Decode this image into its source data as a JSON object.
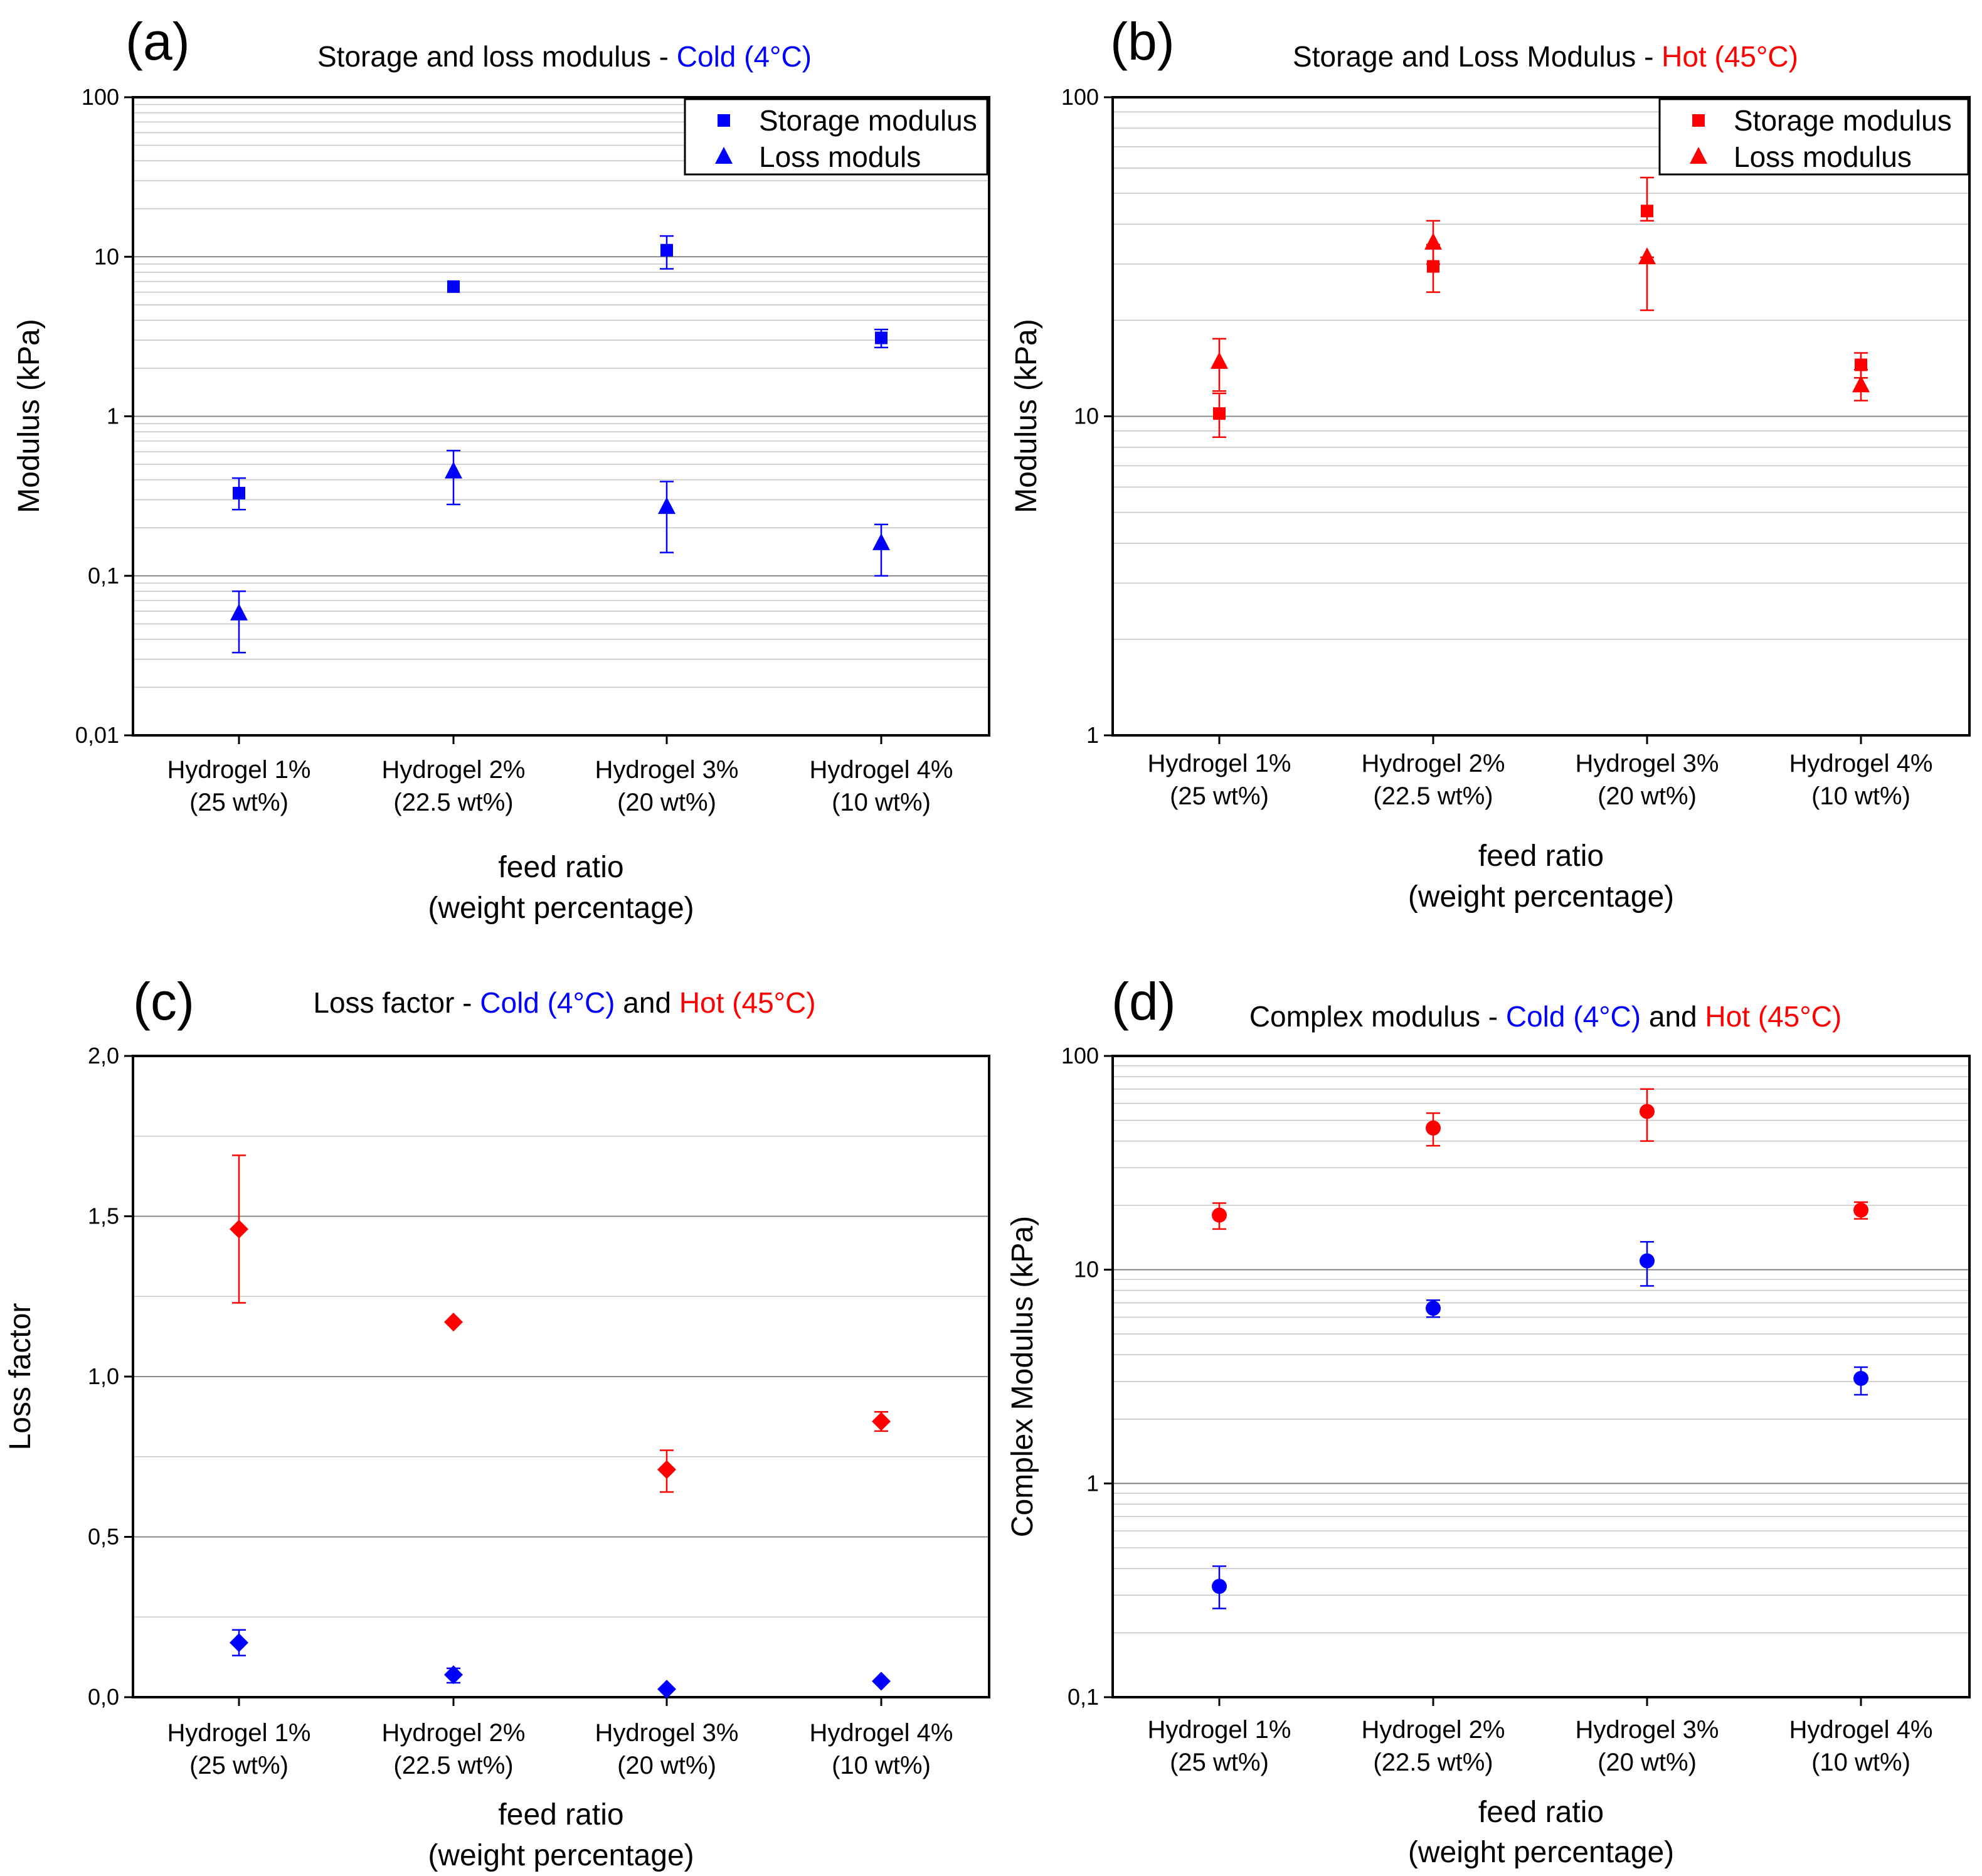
{
  "colors": {
    "cold": "#0000ff",
    "hot": "#ff0000",
    "text": "#000000"
  },
  "chart_data": [
    {
      "id": "a",
      "panel_letter": "(a)",
      "type": "scatter",
      "title_parts": [
        {
          "text": "Storage and loss modulus - ",
          "color": "#000000"
        },
        {
          "text": "Cold (4°C)",
          "color": "#0000ff"
        }
      ],
      "ylabel": "Modulus (kPa)",
      "xlabel_lines": [
        "feed ratio",
        "(weight percentage)"
      ],
      "yscale": "log",
      "ylim": [
        0.01,
        100
      ],
      "yticks": [
        0.01,
        0.1,
        1,
        10,
        100
      ],
      "ytick_labels": [
        "0,01",
        "0,1",
        "1",
        "10",
        "100"
      ],
      "categories": [
        [
          "Hydrogel 1%",
          "(25 wt%)"
        ],
        [
          "Hydrogel 2%",
          "(22.5 wt%)"
        ],
        [
          "Hydrogel 3%",
          "(20 wt%)"
        ],
        [
          "Hydrogel 4%",
          "(10 wt%)"
        ]
      ],
      "legend": {
        "position": "top-right",
        "entries": [
          {
            "label": "Storage modulus",
            "marker": "square",
            "color": "#0000ff"
          },
          {
            "label": "Loss moduls",
            "marker": "triangle",
            "color": "#0000ff"
          }
        ]
      },
      "series": [
        {
          "name": "Storage modulus",
          "marker": "square",
          "color": "#0000ff",
          "values": [
            0.33,
            6.5,
            11,
            3.1
          ],
          "err_low": [
            0.26,
            6.5,
            8.4,
            2.7
          ],
          "err_high": [
            0.41,
            6.5,
            13.5,
            3.5
          ]
        },
        {
          "name": "Loss moduls",
          "marker": "triangle",
          "color": "#0000ff",
          "values": [
            0.058,
            0.45,
            0.27,
            0.16
          ],
          "err_low": [
            0.033,
            0.28,
            0.14,
            0.1
          ],
          "err_high": [
            0.08,
            0.61,
            0.39,
            0.21
          ]
        }
      ]
    },
    {
      "id": "b",
      "panel_letter": "(b)",
      "type": "scatter",
      "title_parts": [
        {
          "text": "Storage and Loss Modulus - ",
          "color": "#000000"
        },
        {
          "text": "Hot (45°C)",
          "color": "#ff0000"
        }
      ],
      "ylabel": "Modulus (kPa)",
      "xlabel_lines": [
        "feed ratio",
        "(weight percentage)"
      ],
      "yscale": "log",
      "ylim": [
        1,
        100
      ],
      "yticks": [
        1,
        10,
        100
      ],
      "ytick_labels": [
        "1",
        "10",
        "100"
      ],
      "categories": [
        [
          "Hydrogel 1%",
          "(25 wt%)"
        ],
        [
          "Hydrogel 2%",
          "(22.5 wt%)"
        ],
        [
          "Hydrogel 3%",
          "(20 wt%)"
        ],
        [
          "Hydrogel 4%",
          "(10 wt%)"
        ]
      ],
      "legend": {
        "position": "top-right",
        "entries": [
          {
            "label": "Storage modulus",
            "marker": "square",
            "color": "#ff0000"
          },
          {
            "label": "Loss modulus",
            "marker": "triangle",
            "color": "#ff0000"
          }
        ]
      },
      "series": [
        {
          "name": "Storage modulus",
          "marker": "square",
          "color": "#ff0000",
          "values": [
            10.2,
            29.5,
            44,
            14.5
          ],
          "err_low": [
            8.6,
            24.5,
            41,
            13.2
          ],
          "err_high": [
            11.8,
            34.5,
            56,
            15.8
          ]
        },
        {
          "name": "Loss modulus",
          "marker": "triangle",
          "color": "#ff0000",
          "values": [
            14.8,
            35,
            31.5,
            12.5
          ],
          "err_low": [
            12,
            30,
            21.5,
            11.2
          ],
          "err_high": [
            17.5,
            41,
            31.5,
            14
          ]
        }
      ]
    },
    {
      "id": "c",
      "panel_letter": "(c)",
      "type": "scatter",
      "title_parts": [
        {
          "text": "Loss factor - ",
          "color": "#000000"
        },
        {
          "text": "Cold (4°C)",
          "color": "#0000ff"
        },
        {
          "text": " and ",
          "color": "#000000"
        },
        {
          "text": "Hot (45°C)",
          "color": "#ff0000"
        }
      ],
      "ylabel": "Loss factor",
      "xlabel_lines": [
        "feed ratio",
        "(weight percentage)"
      ],
      "yscale": "linear",
      "ylim": [
        0,
        2
      ],
      "yticks": [
        0,
        0.5,
        1,
        1.5,
        2
      ],
      "ytick_labels": [
        "0,0",
        "0,5",
        "1,0",
        "1,5",
        "2,0"
      ],
      "minor_grid": [
        0.25,
        0.75,
        1.25,
        1.75
      ],
      "categories": [
        [
          "Hydrogel 1%",
          "(25 wt%)"
        ],
        [
          "Hydrogel 2%",
          "(22.5 wt%)"
        ],
        [
          "Hydrogel 3%",
          "(20 wt%)"
        ],
        [
          "Hydrogel 4%",
          "(10 wt%)"
        ]
      ],
      "series": [
        {
          "name": "Cold (4°C)",
          "marker": "diamond",
          "color": "#0000ff",
          "values": [
            0.17,
            0.07,
            0.025,
            0.05
          ],
          "err_low": [
            0.13,
            0.045,
            0.02,
            0.045
          ],
          "err_high": [
            0.21,
            0.09,
            0.03,
            0.055
          ]
        },
        {
          "name": "Hot (45°C)",
          "marker": "diamond",
          "color": "#ff0000",
          "values": [
            1.46,
            1.17,
            0.71,
            0.86
          ],
          "err_low": [
            1.23,
            1.17,
            0.64,
            0.83
          ],
          "err_high": [
            1.69,
            1.17,
            0.77,
            0.89
          ]
        }
      ]
    },
    {
      "id": "d",
      "panel_letter": "(d)",
      "type": "scatter",
      "title_parts": [
        {
          "text": "Complex modulus - ",
          "color": "#000000"
        },
        {
          "text": "Cold (4°C)",
          "color": "#0000ff"
        },
        {
          "text": " and ",
          "color": "#000000"
        },
        {
          "text": "Hot (45°C)",
          "color": "#ff0000"
        }
      ],
      "ylabel": "Complex Modulus (kPa)",
      "xlabel_lines": [
        "feed ratio",
        "(weight percentage)"
      ],
      "yscale": "log",
      "ylim": [
        0.1,
        100
      ],
      "yticks": [
        0.1,
        1,
        10,
        100
      ],
      "ytick_labels": [
        "0,1",
        "1",
        "10",
        "100"
      ],
      "categories": [
        [
          "Hydrogel 1%",
          "(25 wt%)"
        ],
        [
          "Hydrogel 2%",
          "(22.5 wt%)"
        ],
        [
          "Hydrogel 3%",
          "(20 wt%)"
        ],
        [
          "Hydrogel 4%",
          "(10 wt%)"
        ]
      ],
      "series": [
        {
          "name": "Cold (4°C)",
          "marker": "circle",
          "color": "#0000ff",
          "values": [
            0.33,
            6.6,
            11,
            3.1
          ],
          "err_low": [
            0.26,
            6.0,
            8.4,
            2.6
          ],
          "err_high": [
            0.41,
            7.2,
            13.5,
            3.5
          ]
        },
        {
          "name": "Hot (45°C)",
          "marker": "circle",
          "color": "#ff0000",
          "values": [
            18,
            46,
            55,
            19
          ],
          "err_low": [
            15.5,
            38,
            40,
            17.3
          ],
          "err_high": [
            20.5,
            54,
            70,
            20.7
          ]
        }
      ]
    }
  ]
}
